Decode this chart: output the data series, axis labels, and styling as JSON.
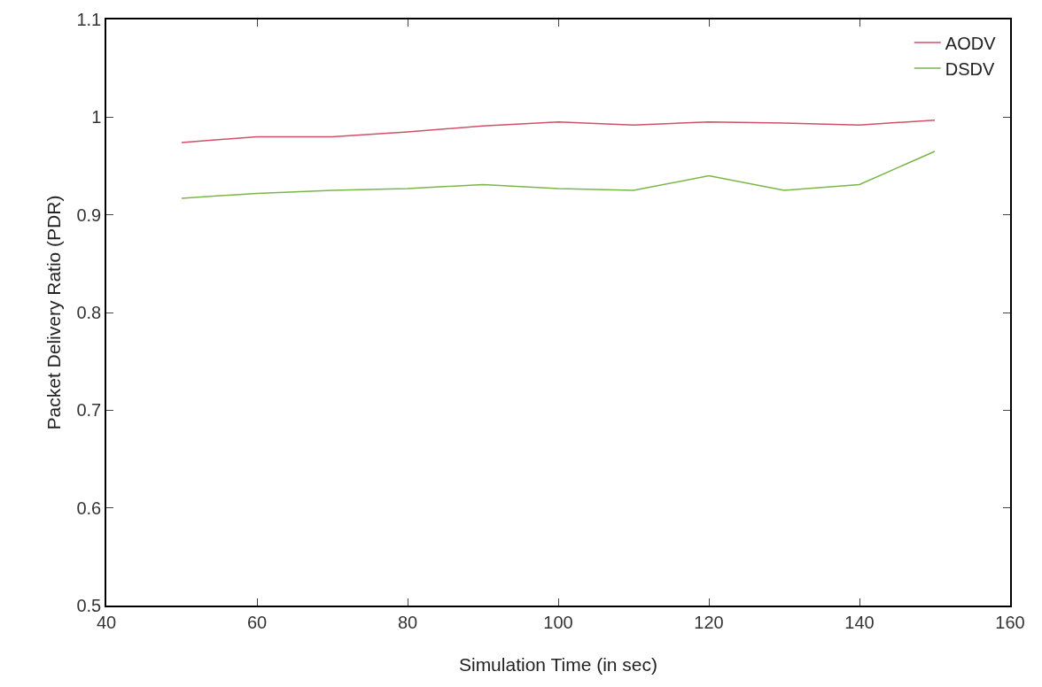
{
  "chart_data": {
    "type": "line",
    "xlabel": "Simulation Time (in sec)",
    "ylabel": "Packet Delivery Ratio (PDR)",
    "x": [
      50,
      60,
      70,
      80,
      90,
      100,
      110,
      120,
      130,
      140,
      150
    ],
    "series": [
      {
        "name": "AODV",
        "color": "#d0506a",
        "values": [
          0.974,
          0.98,
          0.98,
          0.985,
          0.991,
          0.995,
          0.992,
          0.995,
          0.994,
          0.992,
          0.997
        ]
      },
      {
        "name": "DSDV",
        "color": "#7ab648",
        "values": [
          0.917,
          0.922,
          0.925,
          0.927,
          0.931,
          0.927,
          0.925,
          0.94,
          0.925,
          0.931,
          0.965
        ]
      }
    ],
    "xlim": [
      40,
      160
    ],
    "xticks": [
      40,
      60,
      80,
      100,
      120,
      140,
      160
    ],
    "ylim": [
      0.5,
      1.1
    ],
    "yticks": [
      0.5,
      0.6,
      0.7,
      0.8,
      0.9,
      1,
      1.1
    ],
    "grid": false,
    "legend": "top right",
    "marker": "none",
    "line_style": "solid"
  }
}
